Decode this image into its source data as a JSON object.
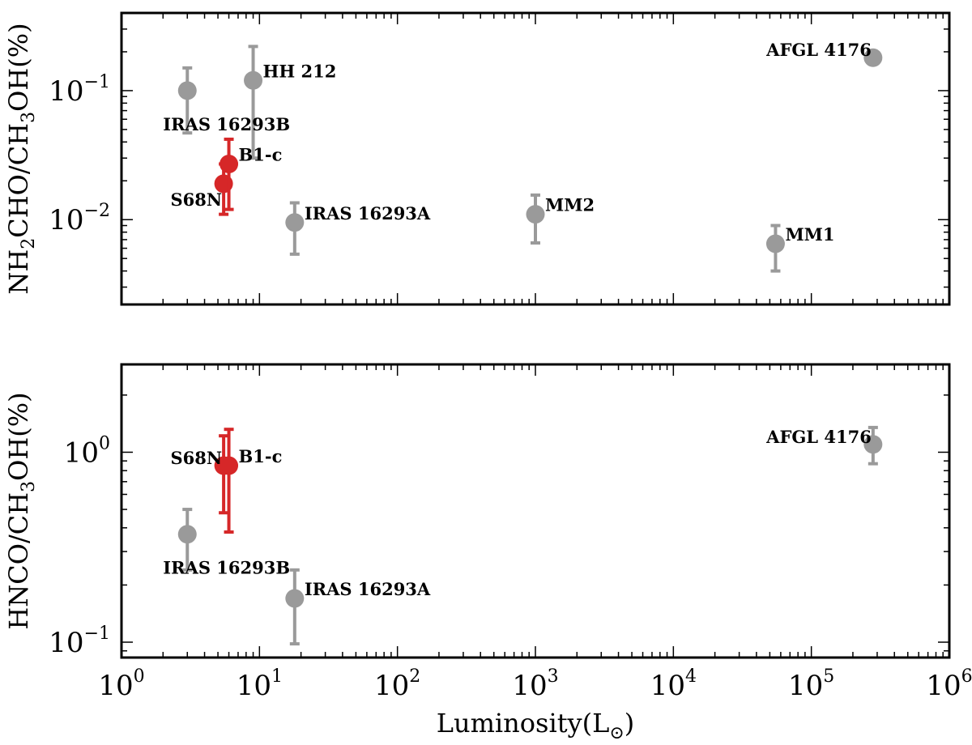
{
  "colors": {
    "sample_gray": "#9a9a9a",
    "this_work_red": "#d62728",
    "frame": "#000000"
  },
  "chart_data": [
    {
      "type": "scatter",
      "xscale": "log",
      "yscale": "log",
      "xlim": [
        1,
        1000000
      ],
      "ylim": [
        0.0022,
        0.4
      ],
      "ylabel": {
        "main": "NH",
        "s1": "2",
        "mid": "CHO/CH",
        "s2": "3",
        "end": "OH(%)"
      },
      "xticks": [
        {
          "value": 1,
          "base": "10",
          "exp": "0"
        },
        {
          "value": 10,
          "base": "10",
          "exp": "1"
        },
        {
          "value": 100,
          "base": "10",
          "exp": "2"
        },
        {
          "value": 1000,
          "base": "10",
          "exp": "3"
        },
        {
          "value": 10000,
          "base": "10",
          "exp": "4"
        },
        {
          "value": 100000,
          "base": "10",
          "exp": "5"
        },
        {
          "value": 1000000,
          "base": "10",
          "exp": "6"
        }
      ],
      "yticks": [
        {
          "value": 0.01,
          "base": "10",
          "exp": "−2"
        },
        {
          "value": 0.1,
          "base": "10",
          "exp": "−1"
        }
      ],
      "points": [
        {
          "label": "IRAS 16293B",
          "x": 3,
          "y": 0.1,
          "yerr": [
            0.047,
            0.15
          ],
          "color": "gray",
          "label_pos": "below-left"
        },
        {
          "label": "HH 212",
          "x": 9,
          "y": 0.12,
          "yerr": [
            0.03,
            0.22
          ],
          "color": "gray",
          "label_pos": "right"
        },
        {
          "label": "IRAS 16293A",
          "x": 18,
          "y": 0.0095,
          "yerr": [
            0.0054,
            0.0135
          ],
          "color": "gray",
          "label_pos": "right"
        },
        {
          "label": "MM2",
          "x": 1000,
          "y": 0.011,
          "yerr": [
            0.0066,
            0.0155
          ],
          "color": "gray",
          "label_pos": "right"
        },
        {
          "label": "MM1",
          "x": 55000,
          "y": 0.0065,
          "yerr": [
            0.004,
            0.009
          ],
          "color": "gray",
          "label_pos": "right"
        },
        {
          "label": "AFGL 4176",
          "x": 280000,
          "y": 0.18,
          "yerr": null,
          "color": "gray",
          "label_pos": "left"
        },
        {
          "label": "S68N",
          "x": 5.5,
          "y": 0.019,
          "yerr": [
            0.011,
            0.027
          ],
          "color": "red",
          "label_pos": "below-left"
        },
        {
          "label": "B1-c",
          "x": 6,
          "y": 0.027,
          "yerr": [
            0.012,
            0.042
          ],
          "color": "red",
          "label_pos": "right"
        }
      ]
    },
    {
      "type": "scatter",
      "xscale": "log",
      "yscale": "log",
      "xlim": [
        1,
        1000000
      ],
      "ylim": [
        0.083,
        2.9
      ],
      "xlabel": {
        "main": "Luminosity(L",
        "sub": "⊙",
        "end": ")"
      },
      "ylabel": {
        "main": "HNCO/CH",
        "s1": "3",
        "end": "OH(%)"
      },
      "xticks": [
        {
          "value": 1,
          "base": "10",
          "exp": "0"
        },
        {
          "value": 10,
          "base": "10",
          "exp": "1"
        },
        {
          "value": 100,
          "base": "10",
          "exp": "2"
        },
        {
          "value": 1000,
          "base": "10",
          "exp": "3"
        },
        {
          "value": 10000,
          "base": "10",
          "exp": "4"
        },
        {
          "value": 100000,
          "base": "10",
          "exp": "5"
        },
        {
          "value": 1000000,
          "base": "10",
          "exp": "6"
        }
      ],
      "yticks": [
        {
          "value": 0.1,
          "base": "10",
          "exp": "−1"
        },
        {
          "value": 1,
          "base": "10",
          "exp": "0"
        }
      ],
      "points": [
        {
          "label": "IRAS 16293B",
          "x": 3,
          "y": 0.37,
          "yerr": [
            0.24,
            0.5
          ],
          "color": "gray",
          "label_pos": "below-left"
        },
        {
          "label": "IRAS 16293A",
          "x": 18,
          "y": 0.17,
          "yerr": [
            0.098,
            0.24
          ],
          "color": "gray",
          "label_pos": "right"
        },
        {
          "label": "AFGL 4176",
          "x": 280000,
          "y": 1.1,
          "yerr": [
            0.87,
            1.35
          ],
          "color": "gray",
          "label_pos": "left"
        },
        {
          "label": "S68N",
          "x": 5.5,
          "y": 0.85,
          "yerr": [
            0.48,
            1.22
          ],
          "color": "red",
          "label_pos": "left"
        },
        {
          "label": "B1-c",
          "x": 6,
          "y": 0.85,
          "yerr": [
            0.38,
            1.32
          ],
          "color": "red",
          "label_pos": "right"
        }
      ]
    }
  ]
}
